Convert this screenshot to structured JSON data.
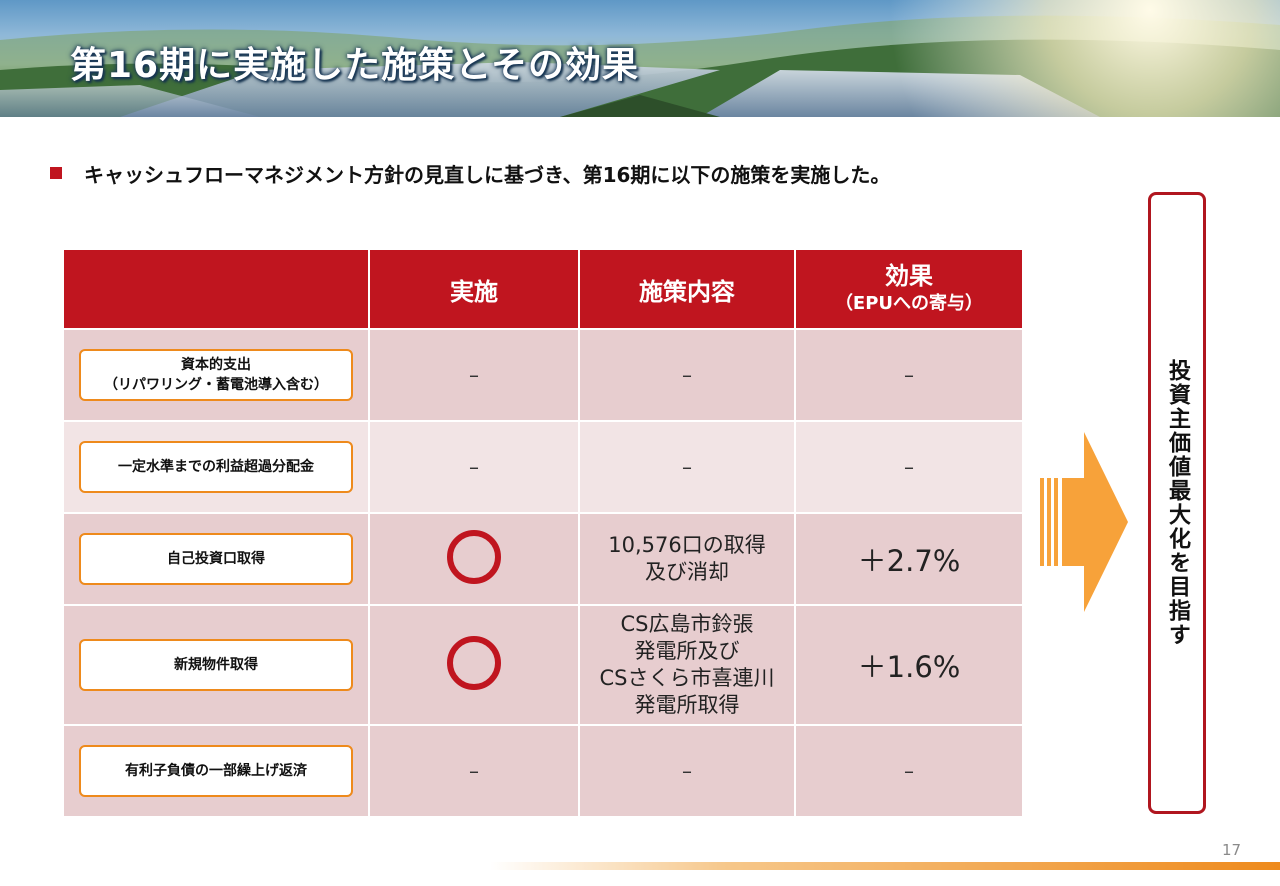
{
  "header": {
    "title": "第16期に実施した施策とその効果"
  },
  "lead": {
    "text": "キャッシュフローマネジメント方針の見直しに基づき、第16期に以下の施策を実施した。"
  },
  "table": {
    "headers": {
      "label": "",
      "implementation": "実施",
      "content": "施策内容",
      "effect_main": "効果",
      "effect_sub": "（EPUへの寄与）"
    },
    "rows": [
      {
        "label_lines": [
          "資本的支出",
          "（リパワリング・蓄電池導入含む）"
        ],
        "implemented": false,
        "impl_text": "–",
        "content_lines": [
          "–"
        ],
        "effect": "–"
      },
      {
        "label_lines": [
          "一定水準までの利益超過分配金"
        ],
        "implemented": false,
        "impl_text": "–",
        "content_lines": [
          "–"
        ],
        "effect": "–"
      },
      {
        "label_lines": [
          "自己投資口取得"
        ],
        "implemented": true,
        "impl_text": "",
        "content_lines": [
          "10,576口の取得",
          "及び消却"
        ],
        "effect": "＋2.7%"
      },
      {
        "label_lines": [
          "新規物件取得"
        ],
        "implemented": true,
        "impl_text": "",
        "content_lines": [
          "CS広島市鈴張",
          "発電所及び",
          "CSさくら市喜連川",
          "発電所取得"
        ],
        "effect": "＋1.6%"
      },
      {
        "label_lines": [
          "有利子負債の一部繰上げ返済"
        ],
        "implemented": false,
        "impl_text": "–",
        "content_lines": [
          "–"
        ],
        "effect": "–"
      }
    ]
  },
  "goal": {
    "text": "投資主価値最大化を目指す"
  },
  "page": {
    "number": "17"
  },
  "colors": {
    "accent_red": "#c0151f",
    "row_dark": "#e7cdcf",
    "row_light": "#f2e4e5",
    "orange": "#ee8a1c",
    "arrow": "#f7a23a"
  }
}
